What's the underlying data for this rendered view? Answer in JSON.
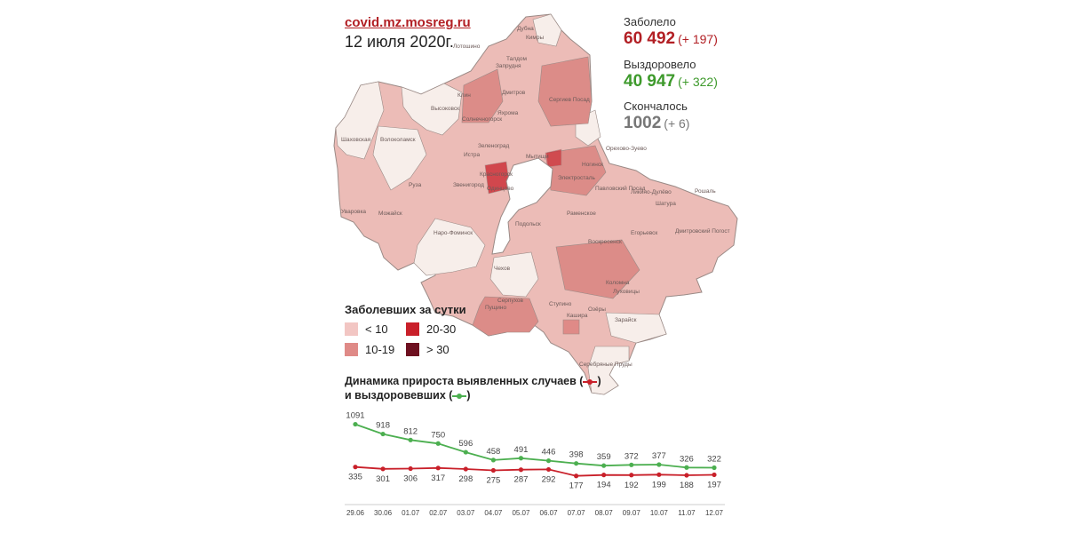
{
  "source": "covid.mz.mosreg.ru",
  "date": "12 июля 2020г.",
  "stats": {
    "infected": {
      "label": "Заболело",
      "value": "60 492",
      "delta": "(+ 197)",
      "color": "#b21f24"
    },
    "recovered": {
      "label": "Выздоровело",
      "value": "40 947",
      "delta": "(+ 322)",
      "color": "#3e9a2c"
    },
    "deaths": {
      "label": "Скончалось",
      "value": "1002",
      "delta": "(+ 6)",
      "color": "#777777"
    }
  },
  "legend": {
    "title": "Заболевших за сутки",
    "items": [
      {
        "label": "< 10",
        "color": "#f2c6c3"
      },
      {
        "label": "20-30",
        "color": "#c9202a"
      },
      {
        "label": "10-19",
        "color": "#df8a87"
      },
      {
        "label": "> 30",
        "color": "#6e1020"
      }
    ]
  },
  "map": {
    "colors": {
      "light": "#f7eeea",
      "mid": "#ecbcb7",
      "dark": "#dc8c88",
      "strong": "#c9202a",
      "border": "#9a8a86",
      "city": "#6b5a58"
    },
    "labels": [
      "Лотошино",
      "Клин",
      "Высоковск",
      "Солнечногорск",
      "Дмитров",
      "Яхрома",
      "Сергиев Посад",
      "Шаховская",
      "Волоколамск",
      "Истра",
      "Зеленоград",
      "Мытищи",
      "Ногинск",
      "Орехово-Зуево",
      "Руза",
      "Звенигород",
      "Красногорск",
      "Одинцово",
      "Электросталь",
      "Павловский Посад",
      "Ликино-Дулёво",
      "Рошаль",
      "Можайск",
      "Уваровка",
      "Раменское",
      "Шатура",
      "Наро-Фоминск",
      "Подольск",
      "Воскресенск",
      "Егорьевск",
      "Дмитровский Погост",
      "Чехов",
      "Серпухов",
      "Коломна",
      "Луховицы",
      "Пущино",
      "Ступино",
      "Озёры",
      "Кашира",
      "Зарайск",
      "Серебряные Пруды",
      "Дубна",
      "Талдом",
      "Запрудня",
      "Кимры"
    ]
  },
  "chart_title_line1": "Динамика прироста выявленных случаев (",
  "chart_title_line2": "и выздоровевших (",
  "chart_title_close": ")",
  "chart_data": {
    "type": "line",
    "title": "Динамика прироста выявленных случаев и выздоровевших",
    "categories": [
      "29.06",
      "30.06",
      "01.07",
      "02.07",
      "03.07",
      "04.07",
      "05.07",
      "06.07",
      "07.07",
      "08.07",
      "09.07",
      "10.07",
      "11.07",
      "12.07"
    ],
    "series": [
      {
        "name": "выздоровевших",
        "color": "#4caf50",
        "values": [
          1091,
          918,
          812,
          750,
          596,
          458,
          491,
          446,
          398,
          359,
          372,
          377,
          326,
          322
        ]
      },
      {
        "name": "выявленных случаев",
        "color": "#c9202a",
        "values": [
          335,
          301,
          306,
          317,
          298,
          275,
          287,
          292,
          177,
          194,
          192,
          199,
          188,
          197
        ]
      }
    ],
    "ylim": [
      0,
      1100
    ],
    "grid": false
  }
}
